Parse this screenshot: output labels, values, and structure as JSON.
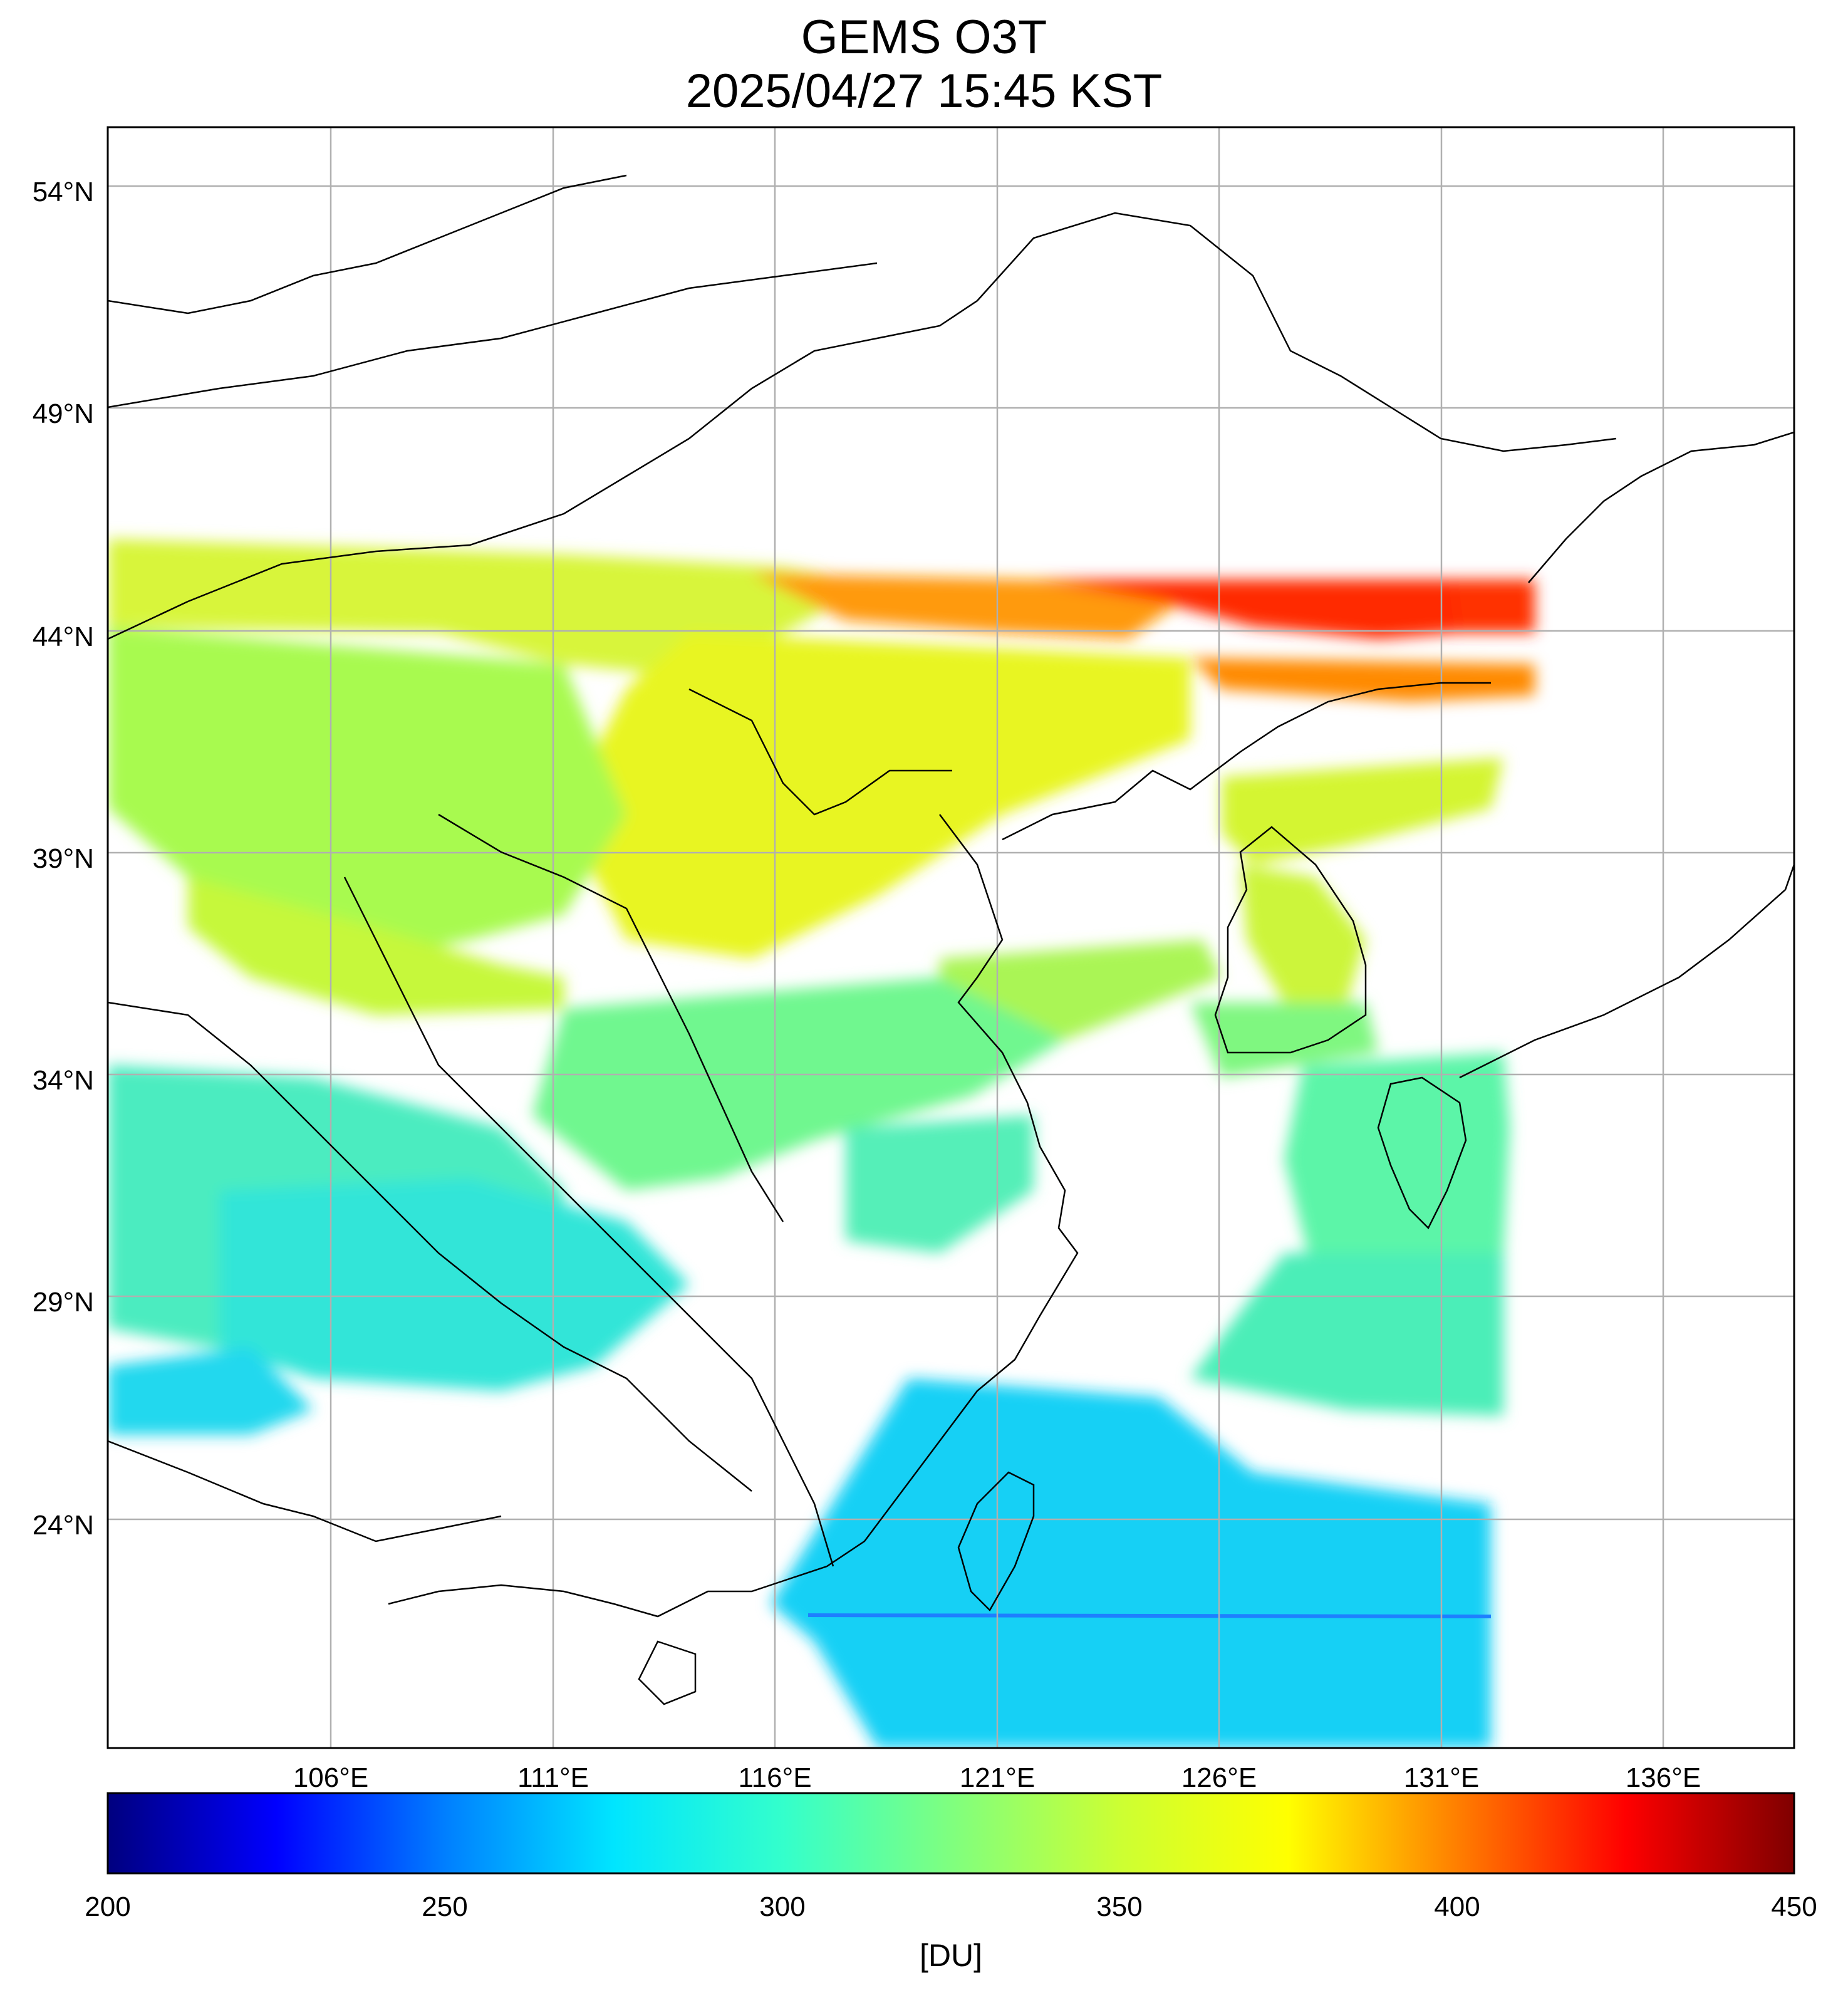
{
  "header": {
    "title": "GEMS O3T",
    "subtitle": "2025/04/27 15:45 KST"
  },
  "map": {
    "lat_labels": [
      "54°N",
      "49°N",
      "44°N",
      "39°N",
      "34°N",
      "29°N",
      "24°N"
    ],
    "lon_labels": [
      "106°E",
      "111°E",
      "116°E",
      "121°E",
      "126°E",
      "131°E",
      "136°E"
    ],
    "grid": true,
    "colors": {
      "frame": "#000000",
      "grid": "#b0b0b0",
      "coastline": "#000000"
    }
  },
  "colorbar": {
    "ticks": [
      "200",
      "250",
      "300",
      "350",
      "400",
      "450"
    ],
    "label": "[DU]",
    "colormap": "jet",
    "stops": [
      "#00007f",
      "#0000ff",
      "#007fff",
      "#00e5ff",
      "#33ffcc",
      "#7fff7f",
      "#ccff33",
      "#ffff00",
      "#ff7f00",
      "#ff0000",
      "#7f0000"
    ]
  }
}
